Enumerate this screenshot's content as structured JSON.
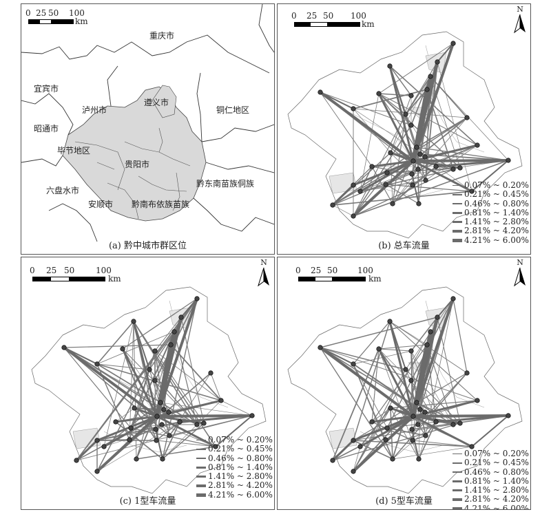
{
  "panel_a": {
    "caption": "(a) 黔中城市群区位",
    "scale": {
      "ticks": [
        "0",
        "25",
        "50",
        "100"
      ],
      "unit": "km"
    },
    "place_labels": [
      "重庆市",
      "宜宾市",
      "泸州市",
      "遵义市",
      "铜仁地区",
      "昭通市",
      "毕节地区",
      "贵阳市",
      "黔东南苗族侗族",
      "六盘水市",
      "安顺市",
      "黔南布依族苗族"
    ]
  },
  "panel_b": {
    "caption": "(b) 总车流量",
    "scale": {
      "ticks": [
        "0",
        "25",
        "50",
        "100"
      ],
      "unit": "km"
    },
    "north": "N"
  },
  "panel_c": {
    "caption": "(c) 1型车流量",
    "scale": {
      "ticks": [
        "0",
        "25",
        "50",
        "100"
      ],
      "unit": "km"
    },
    "north": "N"
  },
  "panel_d": {
    "caption": "(d) 5型车流量",
    "scale": {
      "ticks": [
        "0",
        "25",
        "50",
        "100"
      ],
      "unit": "km"
    },
    "north": "N"
  },
  "legend": {
    "classes": [
      "0.07% ~ 0.20%",
      "0.21% ~ 0.45%",
      "0.46% ~ 0.80%",
      "0.81% ~ 1.40%",
      "1.41% ~ 2.80%",
      "2.81% ~ 4.20%",
      "4.21% ~ 6.00%"
    ]
  },
  "colors": {
    "line": "#6b6b6b",
    "region": "#d9d9d9",
    "node": "#333333"
  }
}
